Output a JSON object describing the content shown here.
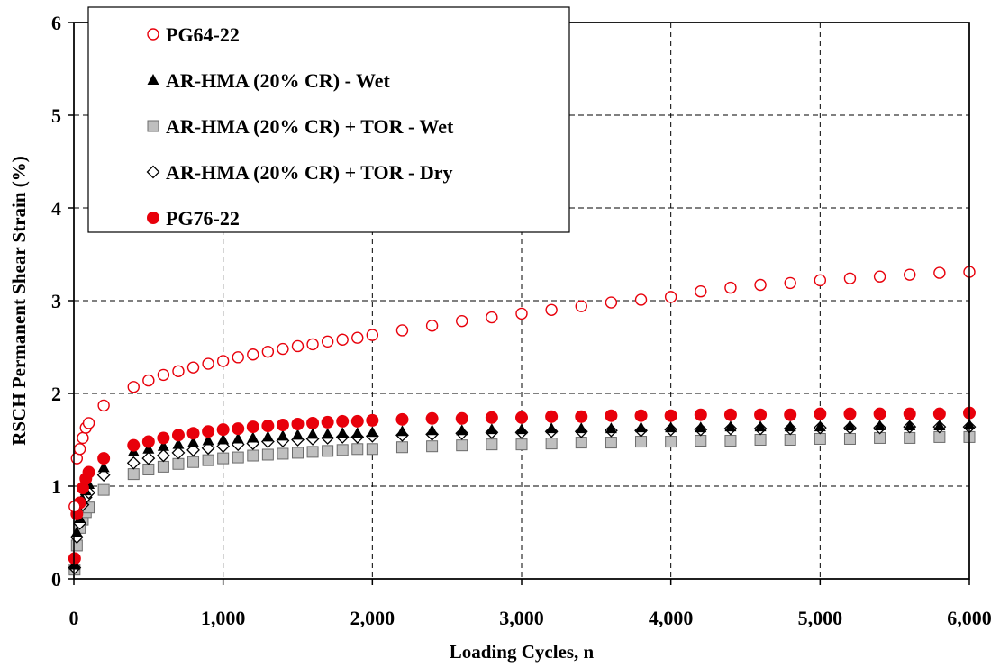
{
  "chart_data": {
    "type": "scatter",
    "title": "",
    "xlabel": "Loading Cycles, n",
    "ylabel": "RSCH Permanent Shear Strain (%)",
    "xlim": [
      0,
      6000
    ],
    "ylim": [
      0,
      6
    ],
    "x_ticks": [
      "0",
      "1,000",
      "2,000",
      "3,000",
      "4,000",
      "5,000",
      "6,000"
    ],
    "y_ticks": [
      "0",
      "1",
      "2",
      "3",
      "4",
      "5",
      "6"
    ],
    "grid": true,
    "legend_position": "top-left",
    "x": [
      5,
      20,
      40,
      60,
      80,
      100,
      200,
      400,
      500,
      600,
      700,
      800,
      900,
      1000,
      1100,
      1200,
      1300,
      1400,
      1500,
      1600,
      1700,
      1800,
      1900,
      2000,
      2200,
      2400,
      2600,
      2800,
      3000,
      3200,
      3400,
      3600,
      3800,
      4000,
      4200,
      4400,
      4600,
      4800,
      5000,
      5200,
      5400,
      5600,
      5800,
      6000
    ],
    "series": [
      {
        "name": "PG64-22",
        "marker": "circle-open",
        "color": "#e8000b",
        "values": [
          0.78,
          1.3,
          1.4,
          1.52,
          1.63,
          1.68,
          1.87,
          2.07,
          2.14,
          2.2,
          2.24,
          2.28,
          2.32,
          2.35,
          2.39,
          2.42,
          2.45,
          2.48,
          2.51,
          2.53,
          2.56,
          2.58,
          2.6,
          2.63,
          2.68,
          2.73,
          2.78,
          2.82,
          2.86,
          2.9,
          2.94,
          2.98,
          3.01,
          3.04,
          3.1,
          3.14,
          3.17,
          3.19,
          3.22,
          3.24,
          3.26,
          3.28,
          3.3,
          3.31
        ]
      },
      {
        "name": "AR-HMA (20% CR) - Wet",
        "marker": "triangle-filled",
        "color": "#000000",
        "values": [
          0.15,
          0.5,
          0.65,
          0.85,
          0.95,
          1.02,
          1.2,
          1.37,
          1.4,
          1.43,
          1.45,
          1.47,
          1.49,
          1.5,
          1.51,
          1.52,
          1.53,
          1.54,
          1.55,
          1.56,
          1.56,
          1.57,
          1.57,
          1.58,
          1.59,
          1.6,
          1.6,
          1.61,
          1.61,
          1.62,
          1.62,
          1.62,
          1.63,
          1.63,
          1.63,
          1.64,
          1.64,
          1.64,
          1.64,
          1.65,
          1.65,
          1.65,
          1.65,
          1.66
        ]
      },
      {
        "name": "AR-HMA (20% CR) + TOR - Wet",
        "marker": "square-filled-gray",
        "color": "#bfbfbf",
        "values": [
          0.1,
          0.36,
          0.55,
          0.64,
          0.72,
          0.77,
          0.96,
          1.13,
          1.18,
          1.21,
          1.24,
          1.26,
          1.28,
          1.3,
          1.31,
          1.33,
          1.34,
          1.35,
          1.36,
          1.37,
          1.38,
          1.39,
          1.4,
          1.4,
          1.42,
          1.43,
          1.44,
          1.45,
          1.45,
          1.46,
          1.47,
          1.47,
          1.48,
          1.48,
          1.49,
          1.49,
          1.5,
          1.5,
          1.51,
          1.51,
          1.52,
          1.52,
          1.53,
          1.53
        ]
      },
      {
        "name": "AR-HMA (20% CR) + TOR - Dry",
        "marker": "diamond-open",
        "color": "#000000",
        "values": [
          0.12,
          0.45,
          0.6,
          0.8,
          0.88,
          0.93,
          1.12,
          1.25,
          1.3,
          1.33,
          1.36,
          1.39,
          1.41,
          1.43,
          1.45,
          1.46,
          1.48,
          1.49,
          1.5,
          1.51,
          1.52,
          1.53,
          1.53,
          1.54,
          1.55,
          1.56,
          1.57,
          1.58,
          1.58,
          1.59,
          1.59,
          1.6,
          1.6,
          1.61,
          1.61,
          1.62,
          1.62,
          1.62,
          1.63,
          1.63,
          1.63,
          1.64,
          1.64,
          1.64
        ]
      },
      {
        "name": "PG76-22",
        "marker": "circle-filled",
        "color": "#e8000b",
        "values": [
          0.22,
          0.7,
          0.82,
          0.98,
          1.08,
          1.15,
          1.3,
          1.44,
          1.48,
          1.52,
          1.55,
          1.57,
          1.59,
          1.61,
          1.62,
          1.64,
          1.65,
          1.66,
          1.67,
          1.68,
          1.69,
          1.7,
          1.7,
          1.71,
          1.72,
          1.73,
          1.73,
          1.74,
          1.74,
          1.75,
          1.75,
          1.76,
          1.76,
          1.76,
          1.77,
          1.77,
          1.77,
          1.77,
          1.78,
          1.78,
          1.78,
          1.78,
          1.78,
          1.79
        ]
      }
    ]
  }
}
